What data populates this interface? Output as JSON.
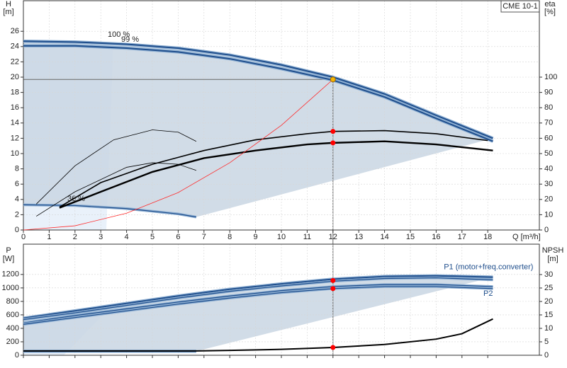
{
  "chart_data": [
    {
      "type": "line",
      "y_label": "H",
      "y_unit": "[m]",
      "y2_label": "eta",
      "y2_unit": "[%]",
      "x_label": "Q [m³/h]",
      "legend_box": "CME 10-1",
      "annotations": [
        "100 %",
        "99 %",
        "36 %"
      ],
      "xlim": [
        0,
        20
      ],
      "xticks": [
        0,
        1,
        2,
        3,
        4,
        5,
        6,
        7,
        8,
        9,
        10,
        11,
        12,
        13,
        14,
        15,
        16,
        17,
        18
      ],
      "ylim": [
        0,
        30
      ],
      "yticks": [
        0,
        2,
        4,
        6,
        8,
        10,
        12,
        14,
        16,
        18,
        20,
        22,
        24,
        26
      ],
      "y2lim": [
        0,
        150
      ],
      "y2ticks": [
        0,
        10,
        20,
        30,
        40,
        50,
        60,
        70,
        80,
        90,
        100
      ],
      "grid": true,
      "series": [
        {
          "color": "#1f4e8c",
          "width": 2,
          "x": [
            0,
            2,
            4,
            6,
            8,
            10,
            12,
            14,
            16,
            18.2
          ],
          "values": [
            24.7,
            24.6,
            24.3,
            23.8,
            22.9,
            21.6,
            20.0,
            17.8,
            15.0,
            12.0
          ]
        },
        {
          "color": "#1f4e8c",
          "width": 2,
          "x": [
            0,
            2,
            4,
            6,
            8,
            10,
            12,
            14,
            16,
            18.2
          ],
          "values": [
            24.1,
            24.1,
            23.8,
            23.3,
            22.4,
            21.1,
            19.6,
            17.4,
            14.6,
            11.6
          ]
        },
        {
          "color": "#1f4e8c",
          "width": 1.2,
          "x": [
            0,
            2,
            4,
            6,
            6.7
          ],
          "values": [
            3.3,
            3.2,
            2.8,
            2.1,
            1.7
          ]
        },
        {
          "color": "#000000",
          "width": 1.6,
          "axis": "y2",
          "x": [
            1.4,
            3,
            5,
            7,
            9,
            11,
            12,
            14,
            16,
            18
          ],
          "values": [
            15,
            31,
            43,
            52,
            59,
            63,
            64.5,
            65,
            63,
            58.5
          ]
        },
        {
          "color": "#000000",
          "width": 2.4,
          "axis": "y2",
          "x": [
            1.4,
            3,
            5,
            7,
            9,
            11,
            12,
            14,
            16,
            18.2
          ],
          "values": [
            14.5,
            25,
            38,
            47,
            52,
            56,
            57,
            58,
            56,
            52
          ]
        },
        {
          "color": "#000000",
          "width": 0.8,
          "axis": "y2",
          "x": [
            0.5,
            2,
            3.5,
            5,
            6,
            6.7
          ],
          "values": [
            17,
            42,
            59,
            65.5,
            64,
            58
          ]
        },
        {
          "color": "#000000",
          "width": 0.8,
          "axis": "y2",
          "x": [
            0.5,
            2,
            4,
            5,
            6,
            6.7
          ],
          "values": [
            9,
            25,
            41,
            44,
            43,
            39
          ]
        },
        {
          "color": "#ff2a2a",
          "width": 0.8,
          "x": [
            0,
            2,
            4,
            6,
            8,
            10,
            12
          ],
          "values": [
            0,
            0.55,
            2.2,
            4.9,
            8.8,
            13.7,
            19.7
          ]
        }
      ],
      "markers": [
        {
          "x": 12,
          "y": 19.7,
          "color": "#f5b400",
          "guide": true
        },
        {
          "x": 12,
          "y": 64.5,
          "axis": "y2",
          "color": "#ff0000"
        },
        {
          "x": 12,
          "y": 57,
          "axis": "y2",
          "color": "#ff0000"
        }
      ]
    },
    {
      "type": "line",
      "y_label": "P",
      "y_unit": "[W]",
      "y2_label": "NPSH",
      "y2_unit": "[m]",
      "xlim": [
        0,
        20
      ],
      "xticks": [
        0,
        1,
        2,
        3,
        4,
        5,
        6,
        7,
        8,
        9,
        10,
        11,
        12,
        13,
        14,
        15,
        16,
        17,
        18
      ],
      "ylim": [
        0,
        1650
      ],
      "yticks": [
        0,
        200,
        400,
        600,
        800,
        1000,
        1200
      ],
      "y2lim": [
        0,
        41.3
      ],
      "y2ticks": [
        0,
        5,
        10,
        15,
        20,
        25,
        30
      ],
      "grid": true,
      "series": [
        {
          "name": "P1 (motor+freq.converter)",
          "color": "#1f4e8c",
          "width": 2,
          "x": [
            0,
            2,
            4,
            6,
            8,
            10,
            12,
            14,
            16,
            18.2
          ],
          "values": [
            550,
            660,
            770,
            880,
            980,
            1060,
            1130,
            1170,
            1180,
            1160
          ]
        },
        {
          "color": "#1f4e8c",
          "width": 1.2,
          "x": [
            0,
            2,
            4,
            6,
            8,
            10,
            12,
            14,
            16,
            18.2
          ],
          "values": [
            530,
            630,
            740,
            850,
            950,
            1030,
            1100,
            1140,
            1150,
            1120
          ]
        },
        {
          "name": "P2",
          "color": "#1f4e8c",
          "width": 1.2,
          "x": [
            0,
            2,
            4,
            6,
            8,
            10,
            12,
            14,
            16,
            18.2
          ],
          "values": [
            480,
            590,
            690,
            790,
            880,
            960,
            1020,
            1050,
            1050,
            1020
          ]
        },
        {
          "color": "#1f4e8c",
          "width": 1.2,
          "x": [
            0,
            2,
            4,
            6,
            8,
            10,
            12,
            14,
            16,
            18.2
          ],
          "values": [
            460,
            560,
            660,
            760,
            850,
            930,
            990,
            1020,
            1020,
            990
          ]
        },
        {
          "color": "#1f4e8c",
          "width": 2,
          "x": [
            0,
            3,
            6.7
          ],
          "values": [
            60,
            60,
            60
          ]
        },
        {
          "color": "#000000",
          "width": 2,
          "axis": "y2",
          "x": [
            0,
            4,
            6.7,
            8,
            10,
            12,
            14,
            16,
            17,
            18.2
          ],
          "values": [
            1.6,
            1.6,
            1.6,
            1.8,
            2.2,
            2.9,
            4,
            6,
            8,
            13.5
          ]
        }
      ],
      "markers": [
        {
          "x": 12,
          "y": 1110,
          "color": "#ff0000"
        },
        {
          "x": 12,
          "y": 990,
          "color": "#ff0000"
        },
        {
          "x": 12,
          "y": 2.9,
          "axis": "y2",
          "color": "#ff0000"
        }
      ]
    }
  ]
}
